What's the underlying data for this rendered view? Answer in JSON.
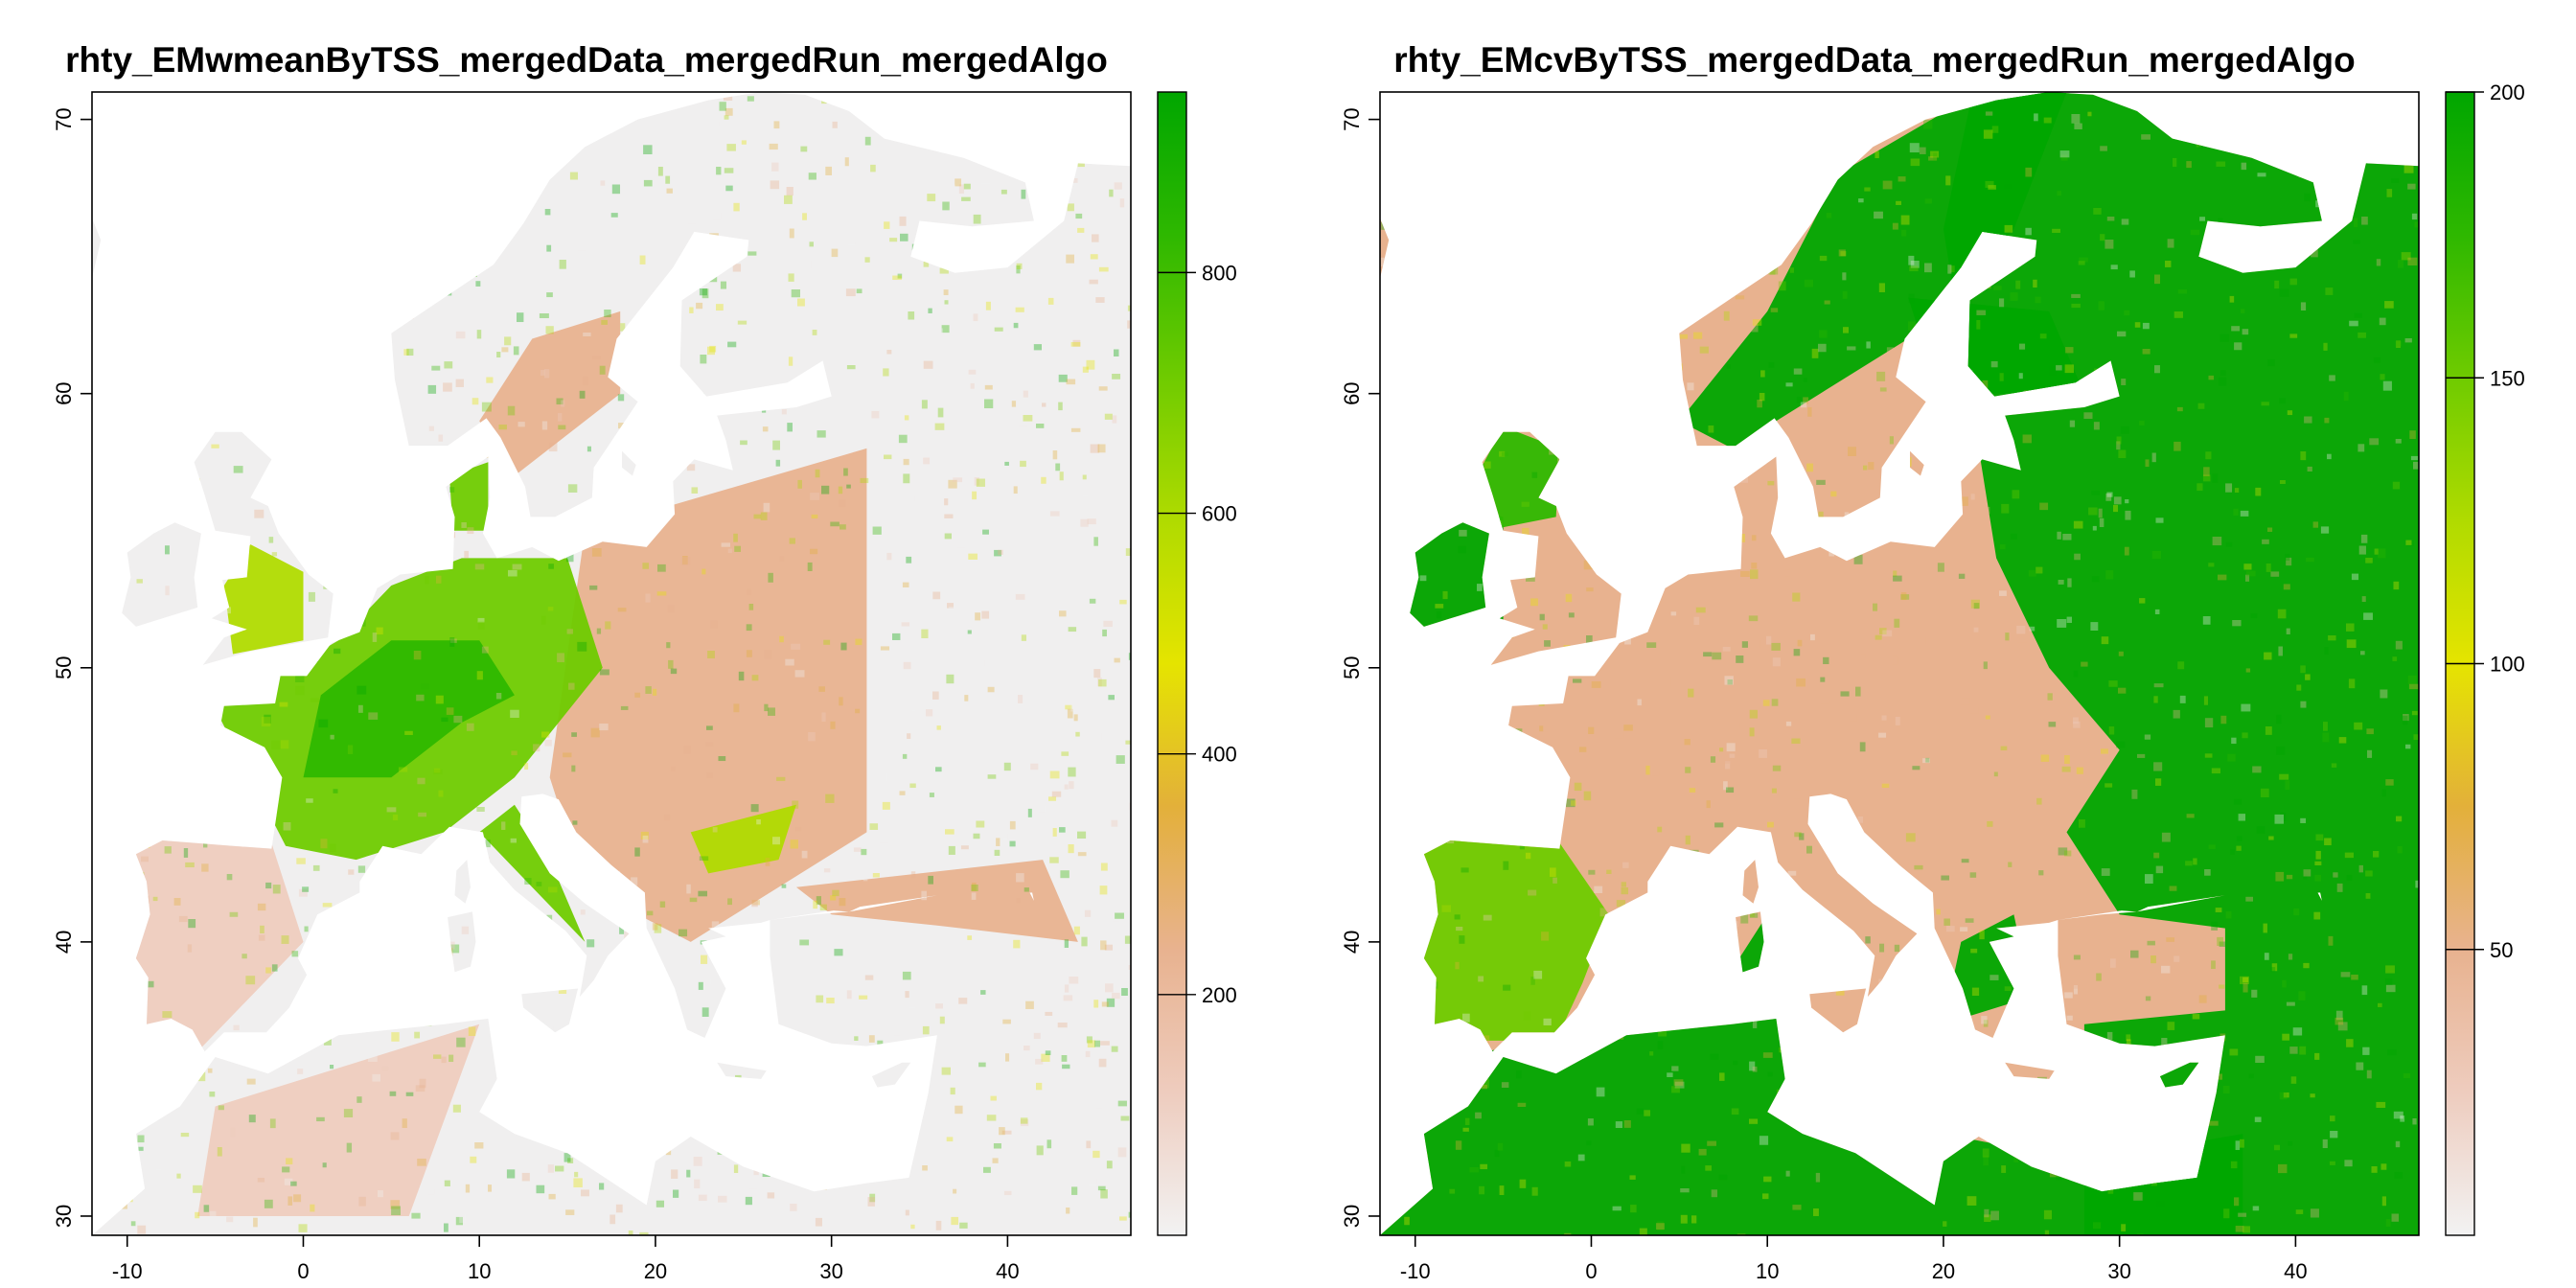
{
  "maps": [
    {
      "id": "left",
      "title": "rhty_EMwmeanByTSS_mergedData_mergedRun_mergedAlgo",
      "x_ticks": [
        "-10",
        "0",
        "10",
        "20",
        "30",
        "40"
      ],
      "y_ticks": [
        "30",
        "40",
        "50",
        "60",
        "70"
      ],
      "legend_ticks": [
        "200",
        "400",
        "600",
        "800"
      ],
      "legend_range": [
        0,
        950
      ],
      "legend_colors": [
        "#f2f2f2",
        "#eeccbe",
        "#e8b28f",
        "#e3b03a",
        "#e5e400",
        "#b0db00",
        "#6fcb00",
        "#2eb800",
        "#00a600"
      ]
    },
    {
      "id": "right",
      "title": "rhty_EMcvByTSS_mergedData_mergedRun_mergedAlgo",
      "x_ticks": [
        "-10",
        "0",
        "10",
        "20",
        "30",
        "40"
      ],
      "y_ticks": [
        "30",
        "40",
        "50",
        "60",
        "70"
      ],
      "legend_ticks": [
        "50",
        "100",
        "150",
        "200"
      ],
      "legend_range": [
        0,
        200
      ],
      "legend_colors": [
        "#f2f2f2",
        "#eeccbe",
        "#e8b28f",
        "#e3b03a",
        "#e5e400",
        "#b0db00",
        "#6fcb00",
        "#2eb800",
        "#00a600"
      ]
    }
  ]
}
